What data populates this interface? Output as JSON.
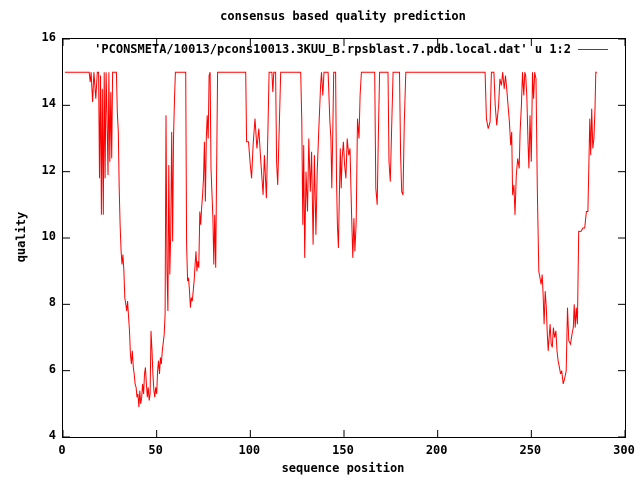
{
  "window": {
    "background_color": "#ffffff",
    "text_color": "#000000",
    "border_color": "#000000"
  },
  "chart_data": {
    "type": "line",
    "title": "consensus based quality prediction",
    "xlabel": "sequence position",
    "ylabel": "quality",
    "xlim": [
      0,
      300
    ],
    "ylim": [
      4,
      16
    ],
    "xticks": [
      0,
      50,
      100,
      150,
      200,
      250,
      300
    ],
    "yticks": [
      4,
      6,
      8,
      10,
      12,
      14,
      16
    ],
    "grid": false,
    "tick_style": "inward-mirrored",
    "legend": {
      "position": "top-right-above-plot-inside",
      "entries": [
        {
          "label": "'PCONSMETA/10013/pcons10013.3KUU_B.rpsblast.7.pdb.local.dat' u 1:2",
          "color": "#ff0000"
        }
      ]
    },
    "series": [
      {
        "name": "'PCONSMETA/10013/pcons10013.3KUU_B.rpsblast.7.pdb.local.dat' u 1:2",
        "color": "#ff0000",
        "points": [
          [
            1,
            15
          ],
          [
            14,
            15
          ],
          [
            14.5,
            14.7
          ],
          [
            15,
            15
          ],
          [
            15.8,
            14.1
          ],
          [
            16.5,
            15
          ],
          [
            17.5,
            14.2
          ],
          [
            18.3,
            15
          ],
          [
            19,
            15
          ],
          [
            19.5,
            11.8
          ],
          [
            20,
            14.9
          ],
          [
            20.5,
            10.7
          ],
          [
            21,
            14.5
          ],
          [
            21.5,
            10.7
          ],
          [
            22,
            15
          ],
          [
            22.5,
            11.8
          ],
          [
            23,
            15
          ],
          [
            23.5,
            13.7
          ],
          [
            24,
            11.9
          ],
          [
            24.5,
            15
          ],
          [
            25,
            12.3
          ],
          [
            25.5,
            14.4
          ],
          [
            26,
            12.4
          ],
          [
            26.5,
            15
          ],
          [
            28.5,
            15
          ],
          [
            29,
            13.8
          ],
          [
            29.5,
            13.2
          ],
          [
            30,
            11.5
          ],
          [
            30.5,
            10.4
          ],
          [
            31,
            9.6
          ],
          [
            31.5,
            9.2
          ],
          [
            32,
            9.5
          ],
          [
            32.5,
            9.0
          ],
          [
            33,
            8.2
          ],
          [
            33.5,
            8.0
          ],
          [
            34,
            7.8
          ],
          [
            34.5,
            8.1
          ],
          [
            35,
            7.6
          ],
          [
            35.5,
            7.2
          ],
          [
            36,
            6.5
          ],
          [
            36.5,
            6.2
          ],
          [
            37,
            6.6
          ],
          [
            37.5,
            6.1
          ],
          [
            38,
            5.9
          ],
          [
            38.5,
            5.6
          ],
          [
            39,
            5.5
          ],
          [
            39.5,
            5.2
          ],
          [
            40,
            5.3
          ],
          [
            40.5,
            4.9
          ],
          [
            41,
            5.4
          ],
          [
            41.5,
            5.0
          ],
          [
            42,
            5.2
          ],
          [
            42.5,
            5.6
          ],
          [
            43,
            5.3
          ],
          [
            43.5,
            5.9
          ],
          [
            44,
            6.1
          ],
          [
            44.5,
            5.6
          ],
          [
            45,
            5.2
          ],
          [
            45.5,
            5.5
          ],
          [
            46,
            5.1
          ],
          [
            46.5,
            5.3
          ],
          [
            47,
            7.2
          ],
          [
            47.5,
            6.6
          ],
          [
            48,
            5.9
          ],
          [
            48.5,
            5.4
          ],
          [
            49,
            5.2
          ],
          [
            49.5,
            5.5
          ],
          [
            50,
            5.3
          ],
          [
            50.5,
            6.0
          ],
          [
            51,
            6.3
          ],
          [
            51.5,
            5.9
          ],
          [
            52,
            6.4
          ],
          [
            52.5,
            6.2
          ],
          [
            53,
            6.6
          ],
          [
            54,
            7.1
          ],
          [
            54.5,
            7.7
          ],
          [
            55,
            13.7
          ],
          [
            55.5,
            9.0
          ],
          [
            56,
            7.8
          ],
          [
            56.5,
            12.2
          ],
          [
            57,
            8.9
          ],
          [
            57.5,
            10.1
          ],
          [
            58,
            13.2
          ],
          [
            58.5,
            9.9
          ],
          [
            59,
            13.0
          ],
          [
            59.5,
            14.2
          ],
          [
            60,
            15
          ],
          [
            65.5,
            15
          ],
          [
            66,
            9.8
          ],
          [
            66.5,
            8.7
          ],
          [
            67,
            8.8
          ],
          [
            67.5,
            8.4
          ],
          [
            68,
            7.9
          ],
          [
            68.5,
            8.2
          ],
          [
            69,
            8.1
          ],
          [
            69.5,
            8.4
          ],
          [
            70,
            8.7
          ],
          [
            70.5,
            9.2
          ],
          [
            71,
            9.6
          ],
          [
            71.5,
            9.0
          ],
          [
            72,
            9.3
          ],
          [
            72.5,
            9.1
          ],
          [
            73,
            10.8
          ],
          [
            73.5,
            10.4
          ],
          [
            74,
            10.9
          ],
          [
            74.5,
            11.3
          ],
          [
            75,
            11.8
          ],
          [
            75.5,
            12.9
          ],
          [
            76,
            11.1
          ],
          [
            76.5,
            13.0
          ],
          [
            77,
            13.7
          ],
          [
            77.5,
            13.0
          ],
          [
            78,
            14.9
          ],
          [
            78.5,
            15
          ],
          [
            79,
            12.1
          ],
          [
            79.5,
            11.4
          ],
          [
            80,
            10.6
          ],
          [
            80.5,
            9.2
          ],
          [
            81,
            10.7
          ],
          [
            81.5,
            9.1
          ],
          [
            82,
            12.0
          ],
          [
            82.5,
            15
          ],
          [
            97.5,
            15
          ],
          [
            98,
            12.9
          ],
          [
            99,
            12.9
          ],
          [
            100,
            12.2
          ],
          [
            100.7,
            11.8
          ],
          [
            101.5,
            12.8
          ],
          [
            102.5,
            13.6
          ],
          [
            103.5,
            12.7
          ],
          [
            104.5,
            13.3
          ],
          [
            105.5,
            12.4
          ],
          [
            106.8,
            11.3
          ],
          [
            107.5,
            12.5
          ],
          [
            108.6,
            11.2
          ],
          [
            109.5,
            13.5
          ],
          [
            110,
            15
          ],
          [
            111.5,
            15
          ],
          [
            112,
            14.4
          ],
          [
            112.5,
            15
          ],
          [
            113.5,
            15
          ],
          [
            114,
            12.3
          ],
          [
            114.6,
            11.6
          ],
          [
            115.5,
            13.5
          ],
          [
            116.2,
            15
          ],
          [
            126.9,
            15
          ],
          [
            127.5,
            13.5
          ],
          [
            128,
            10.4
          ],
          [
            128.5,
            12.8
          ],
          [
            129,
            9.4
          ],
          [
            129.7,
            12.0
          ],
          [
            130.5,
            10.8
          ],
          [
            131.2,
            13.0
          ],
          [
            132,
            11.4
          ],
          [
            132.7,
            12.6
          ],
          [
            133.5,
            9.8
          ],
          [
            134.2,
            12.5
          ],
          [
            135,
            10.1
          ],
          [
            135.7,
            12.0
          ],
          [
            136.5,
            13.2
          ],
          [
            137.5,
            14.6
          ],
          [
            138,
            15
          ],
          [
            138.7,
            14.3
          ],
          [
            139.3,
            15
          ],
          [
            141.5,
            15
          ],
          [
            142.5,
            13.5
          ],
          [
            143,
            13.0
          ],
          [
            143.5,
            11.5
          ],
          [
            144,
            13.2
          ],
          [
            144.5,
            15
          ],
          [
            145.5,
            15
          ],
          [
            146,
            11.8
          ],
          [
            146.5,
            10.4
          ],
          [
            147,
            9.7
          ],
          [
            147.5,
            11.2
          ],
          [
            148,
            12.7
          ],
          [
            148.5,
            11.5
          ],
          [
            149,
            12.4
          ],
          [
            149.7,
            12.9
          ],
          [
            150.3,
            12.2
          ],
          [
            151,
            11.8
          ],
          [
            151.7,
            13.0
          ],
          [
            152.5,
            12.5
          ],
          [
            153.2,
            12.7
          ],
          [
            154,
            10.8
          ],
          [
            154.7,
            9.4
          ],
          [
            155.3,
            10.6
          ],
          [
            155.8,
            9.6
          ],
          [
            156.5,
            10.5
          ],
          [
            157.2,
            13.6
          ],
          [
            158,
            13.0
          ],
          [
            158.6,
            14.3
          ],
          [
            159.3,
            15
          ],
          [
            166.4,
            15
          ],
          [
            167,
            11.5
          ],
          [
            167.7,
            11.0
          ],
          [
            168.3,
            13.0
          ],
          [
            169,
            15
          ],
          [
            173.5,
            15
          ],
          [
            174,
            12.3
          ],
          [
            174.7,
            11.7
          ],
          [
            175.5,
            13.5
          ],
          [
            176.2,
            15
          ],
          [
            179.6,
            15
          ],
          [
            180.2,
            12.5
          ],
          [
            180.8,
            11.4
          ],
          [
            181.5,
            11.3
          ],
          [
            182.2,
            13.5
          ],
          [
            183,
            15
          ],
          [
            225.3,
            15
          ],
          [
            226,
            13.6
          ],
          [
            227,
            13.3
          ],
          [
            228,
            13.5
          ],
          [
            228.7,
            15
          ],
          [
            230,
            15
          ],
          [
            230.7,
            14.0
          ],
          [
            231.5,
            13.4
          ],
          [
            232.5,
            14.0
          ],
          [
            233.2,
            14.8
          ],
          [
            234,
            14.6
          ],
          [
            234.7,
            15
          ],
          [
            235.5,
            14.5
          ],
          [
            236.2,
            14.9
          ],
          [
            237,
            14.4
          ],
          [
            237.7,
            13.9
          ],
          [
            238.3,
            13.5
          ],
          [
            239,
            12.8
          ],
          [
            239.5,
            13.2
          ],
          [
            240,
            11.3
          ],
          [
            240.7,
            11.6
          ],
          [
            241.3,
            10.7
          ],
          [
            242,
            11.9
          ],
          [
            242.7,
            12.4
          ],
          [
            243.5,
            12.1
          ],
          [
            244,
            13.2
          ],
          [
            244.7,
            14.0
          ],
          [
            245.3,
            15
          ],
          [
            246,
            14.3
          ],
          [
            246.5,
            15
          ],
          [
            247,
            14.9
          ],
          [
            247.6,
            14.3
          ],
          [
            248.2,
            12.9
          ],
          [
            248.7,
            12.1
          ],
          [
            249.3,
            13.7
          ],
          [
            250,
            12.3
          ],
          [
            250.6,
            15
          ],
          [
            251.2,
            14.2
          ],
          [
            251.8,
            15
          ],
          [
            252.5,
            14.8
          ],
          [
            253.2,
            11.5
          ],
          [
            254,
            9.0
          ],
          [
            254.6,
            8.8
          ],
          [
            255.2,
            8.6
          ],
          [
            255.8,
            8.9
          ],
          [
            256.3,
            8.3
          ],
          [
            256.8,
            7.4
          ],
          [
            257.4,
            8.4
          ],
          [
            258,
            7.9
          ],
          [
            258.5,
            7.1
          ],
          [
            259,
            6.6
          ],
          [
            259.5,
            7.0
          ],
          [
            260,
            7.4
          ],
          [
            260.6,
            6.8
          ],
          [
            261.2,
            6.7
          ],
          [
            261.8,
            7.3
          ],
          [
            262.4,
            7.0
          ],
          [
            263.1,
            7.2
          ],
          [
            263.7,
            6.6
          ],
          [
            264.3,
            6.3
          ],
          [
            265,
            6.1
          ],
          [
            265.6,
            5.9
          ],
          [
            266.2,
            6.0
          ],
          [
            267,
            5.6
          ],
          [
            267.9,
            5.8
          ],
          [
            268.6,
            6.0
          ],
          [
            269.3,
            7.9
          ],
          [
            270,
            6.9
          ],
          [
            270.9,
            6.8
          ],
          [
            271.7,
            7.1
          ],
          [
            272.4,
            7.3
          ],
          [
            272.9,
            8.0
          ],
          [
            273.4,
            7.3
          ],
          [
            274,
            7.9
          ],
          [
            274.6,
            7.4
          ],
          [
            275.3,
            10.2
          ],
          [
            276.5,
            10.2
          ],
          [
            277.5,
            10.3
          ],
          [
            278.5,
            10.3
          ],
          [
            279,
            10.6
          ],
          [
            279.4,
            10.8
          ],
          [
            280.2,
            10.8
          ],
          [
            280.7,
            12.1
          ],
          [
            281.2,
            13.6
          ],
          [
            281.7,
            12.5
          ],
          [
            282.2,
            13.9
          ],
          [
            282.8,
            12.7
          ],
          [
            283.4,
            13.0
          ],
          [
            284,
            13.9
          ],
          [
            284.4,
            15
          ],
          [
            285,
            15
          ]
        ]
      }
    ]
  }
}
